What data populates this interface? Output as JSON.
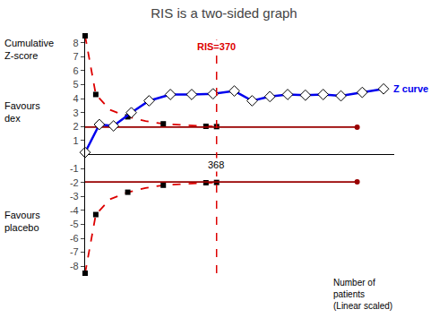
{
  "chart_data": {
    "type": "line",
    "title": "RIS is a two-sided graph",
    "ylabel": "Cumulative\nZ-score",
    "xlabel": "Number of\npatients\n(Linear scaled)",
    "xlim": [
      0,
      870
    ],
    "ylim": [
      -8.5,
      8.5
    ],
    "yticks": [
      -8,
      -7,
      -6,
      -5,
      -4,
      -3,
      -2,
      -1,
      1,
      2,
      3,
      4,
      5,
      6,
      7,
      8
    ],
    "tick_labels": "y",
    "grid": false,
    "series": [
      {
        "x": [
          0,
          30,
          70,
          120,
          170,
          220,
          280,
          340,
          370
        ],
        "values": [
          8.5,
          4.3,
          3.2,
          2.7,
          2.4,
          2.2,
          2.1,
          2.02,
          2.0
        ],
        "color": "#DD0000",
        "line_style": "dashed",
        "marker": "none"
      },
      {
        "x": [
          0,
          30,
          70,
          120,
          170,
          220,
          280,
          340,
          370
        ],
        "values": [
          -8.5,
          -4.3,
          -3.2,
          -2.7,
          -2.4,
          -2.2,
          -2.1,
          -2.02,
          -2.0
        ],
        "color": "#DD0000",
        "line_style": "dashed",
        "marker": "none"
      },
      {
        "x": [
          0,
          30,
          120,
          220,
          340,
          370
        ],
        "values": [
          8.5,
          4.3,
          2.7,
          2.2,
          2.02,
          2.0
        ],
        "color": "black",
        "line_style": "none",
        "marker": "square"
      },
      {
        "x": [
          0,
          30,
          120,
          220,
          340,
          370
        ],
        "values": [
          -8.5,
          -4.3,
          -2.7,
          -2.2,
          -2.02,
          -2.0
        ],
        "color": "black",
        "line_style": "none",
        "marker": "square"
      },
      {
        "x": [
          0,
          765.6
        ],
        "values": [
          1.96,
          1.96
        ],
        "color": "#990000",
        "line_style": "solid",
        "marker": "none"
      },
      {
        "x": [
          0,
          765.6
        ],
        "values": [
          -1.96,
          -1.96
        ],
        "color": "#990000",
        "line_style": "solid",
        "marker": "none"
      },
      {
        "x": [
          765.6
        ],
        "values": [
          1.96
        ],
        "color": "#990000",
        "line_style": "none",
        "marker": "circle"
      },
      {
        "x": [
          765.6
        ],
        "values": [
          -1.96
        ],
        "color": "#990000",
        "line_style": "none",
        "marker": "circle"
      },
      {
        "name": "Z curve",
        "x": [
          0,
          40,
          80,
          130,
          180,
          240,
          300,
          360,
          420,
          470,
          520,
          570,
          620,
          670,
          720,
          780,
          840
        ],
        "values": [
          0.15,
          2.15,
          2.05,
          3.0,
          3.85,
          4.3,
          4.3,
          4.35,
          4.55,
          3.85,
          4.15,
          4.3,
          4.25,
          4.3,
          4.2,
          4.45,
          4.7
        ],
        "color": "#0000EE",
        "line_style": "solid",
        "marker": "diamond"
      }
    ],
    "reference_lines": [
      {
        "x": 370,
        "label": "RIS=370",
        "color": "#DD0000",
        "line_style": "dashed"
      }
    ],
    "annotations": [
      {
        "text": "368",
        "x": 368
      },
      {
        "text": "Favours\ndex"
      },
      {
        "text": "Favours\nplacebo"
      }
    ]
  }
}
